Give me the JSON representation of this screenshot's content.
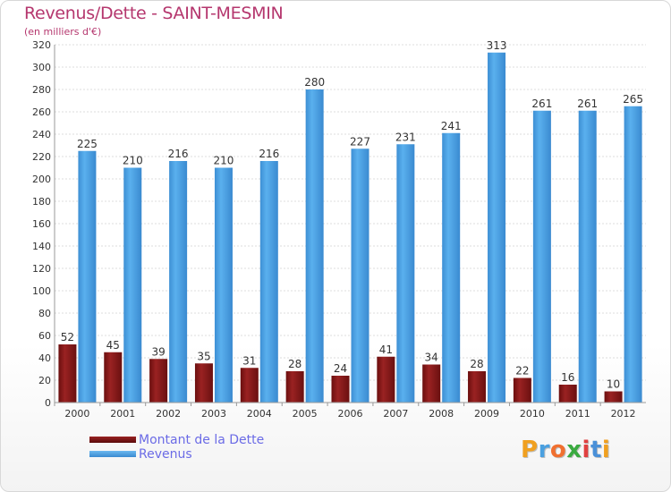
{
  "title": "Revenus/Dette - SAINT-MESMIN",
  "subtitle": "(en milliers d'€)",
  "logo": {
    "letters": [
      "P",
      "r",
      "o",
      "x",
      "i",
      "t",
      "i"
    ],
    "colors": [
      "#f0a020",
      "#4aa0e0",
      "#f07030",
      "#3aaa40",
      "#e04040",
      "#4a90d8",
      "#f0a020"
    ]
  },
  "colors": {
    "dette": "#8b1a1a",
    "revenus": "#4ea6e8",
    "axis_text": "#333333",
    "grid": "#dcdcdc"
  },
  "chart_data": {
    "type": "bar",
    "title": "Revenus/Dette - SAINT-MESMIN",
    "subtitle": "(en milliers d'€)",
    "categories": [
      "2000",
      "2001",
      "2002",
      "2003",
      "2004",
      "2005",
      "2006",
      "2007",
      "2008",
      "2009",
      "2010",
      "2011",
      "2012"
    ],
    "series": [
      {
        "name": "Montant de la Dette",
        "values": [
          52,
          45,
          39,
          35,
          31,
          28,
          24,
          41,
          34,
          28,
          22,
          16,
          10
        ]
      },
      {
        "name": "Revenus",
        "values": [
          225,
          210,
          216,
          210,
          216,
          280,
          227,
          231,
          241,
          313,
          261,
          261,
          265
        ]
      }
    ],
    "ylim": [
      0,
      320
    ],
    "yticks": [
      0,
      20,
      40,
      60,
      80,
      100,
      120,
      140,
      160,
      180,
      200,
      220,
      240,
      260,
      280,
      300,
      320
    ],
    "xlabel": "",
    "ylabel": "",
    "grid": true,
    "legend_position": "bottom-left"
  }
}
